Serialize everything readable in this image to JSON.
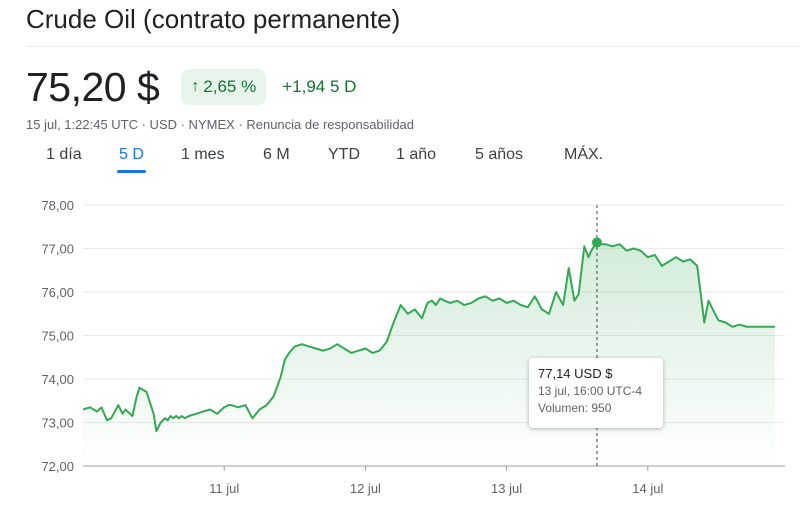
{
  "header": {
    "title": "Crude Oil (contrato permanente)",
    "price": "75,20 $",
    "change_percent": "2,65 %",
    "change_abs": "+1,94 5 D",
    "meta": "15 jul, 1:22:45 UTC · USD · NYMEX · Renuncia de responsabilidad"
  },
  "colors": {
    "up_green": "#137333",
    "line_green": "#34a853",
    "accent_blue": "#1a73e8"
  },
  "tabs": [
    {
      "label": "1 día",
      "active": false
    },
    {
      "label": "5 D",
      "active": true
    },
    {
      "label": "1 mes",
      "active": false
    },
    {
      "label": "6 M",
      "active": false
    },
    {
      "label": "YTD",
      "active": false
    },
    {
      "label": "1 año",
      "active": false
    },
    {
      "label": "5 años",
      "active": false
    },
    {
      "label": "MÁX.",
      "active": false
    }
  ],
  "tooltip": {
    "price": "77,14 USD $",
    "time": "13 jul, 16:00 UTC-4",
    "volume": "Volumen: 950"
  },
  "chart_data": {
    "type": "line",
    "ylim": [
      72,
      78
    ],
    "yticks": [
      {
        "value": 78,
        "label": "78,00"
      },
      {
        "value": 77,
        "label": "77,00"
      },
      {
        "value": 76,
        "label": "76,00"
      },
      {
        "value": 75,
        "label": "75,00"
      },
      {
        "value": 74,
        "label": "74,00"
      },
      {
        "value": 73,
        "label": "73,00"
      },
      {
        "value": 72,
        "label": "72,00"
      }
    ],
    "xlim": [
      0,
      5
    ],
    "xticks": [
      {
        "value": 1,
        "label": "11 jul"
      },
      {
        "value": 2,
        "label": "12 jul"
      },
      {
        "value": 3,
        "label": "13 jul"
      },
      {
        "value": 4,
        "label": "14 jul"
      }
    ],
    "highlight": {
      "x": 3.64,
      "y": 77.14
    },
    "series": [
      {
        "x": [
          0.0,
          0.05,
          0.1,
          0.13,
          0.17,
          0.2,
          0.25,
          0.28,
          0.3,
          0.35,
          0.38,
          0.4,
          0.45,
          0.5,
          0.52,
          0.55,
          0.58,
          0.6,
          0.62,
          0.64,
          0.66,
          0.68,
          0.7,
          0.72,
          0.75,
          0.8,
          0.85,
          0.9,
          0.95,
          1.0,
          1.03,
          1.05,
          1.1,
          1.15,
          1.2,
          1.25,
          1.3,
          1.35,
          1.4,
          1.43,
          1.46,
          1.5,
          1.55,
          1.6,
          1.65,
          1.7,
          1.75,
          1.8,
          1.85,
          1.9,
          1.95,
          2.0,
          2.05,
          2.1,
          2.15,
          2.2,
          2.25,
          2.3,
          2.35,
          2.4,
          2.44,
          2.47,
          2.5,
          2.53,
          2.56,
          2.6,
          2.65,
          2.7,
          2.75,
          2.8,
          2.85,
          2.9,
          2.95,
          3.0,
          3.05,
          3.1,
          3.15,
          3.2,
          3.25,
          3.3,
          3.35,
          3.4,
          3.44,
          3.48,
          3.51,
          3.55,
          3.58,
          3.6,
          3.62,
          3.64,
          3.67,
          3.7,
          3.75,
          3.8,
          3.85,
          3.9,
          3.95,
          4.0,
          4.05,
          4.1,
          4.15,
          4.2,
          4.25,
          4.3,
          4.35,
          4.4,
          4.43,
          4.46,
          4.5,
          4.55,
          4.6,
          4.65,
          4.7,
          4.8,
          4.9
        ],
        "values": [
          73.3,
          73.35,
          73.25,
          73.35,
          73.05,
          73.1,
          73.4,
          73.2,
          73.3,
          73.15,
          73.6,
          73.8,
          73.7,
          73.2,
          72.8,
          73.0,
          73.1,
          73.05,
          73.15,
          73.1,
          73.15,
          73.1,
          73.15,
          73.1,
          73.15,
          73.2,
          73.25,
          73.3,
          73.2,
          73.35,
          73.4,
          73.4,
          73.35,
          73.4,
          73.1,
          73.3,
          73.4,
          73.6,
          74.05,
          74.45,
          74.6,
          74.75,
          74.8,
          74.75,
          74.7,
          74.65,
          74.7,
          74.8,
          74.7,
          74.6,
          74.65,
          74.7,
          74.6,
          74.65,
          74.85,
          75.3,
          75.7,
          75.5,
          75.6,
          75.4,
          75.75,
          75.8,
          75.7,
          75.85,
          75.8,
          75.75,
          75.8,
          75.7,
          75.75,
          75.85,
          75.9,
          75.8,
          75.85,
          75.75,
          75.8,
          75.7,
          75.65,
          75.9,
          75.6,
          75.5,
          76.0,
          75.7,
          76.55,
          75.8,
          75.95,
          77.05,
          76.8,
          76.95,
          77.05,
          77.14,
          77.1,
          77.1,
          77.05,
          77.1,
          76.95,
          77.0,
          76.95,
          76.8,
          76.85,
          76.6,
          76.7,
          76.8,
          76.7,
          76.75,
          76.6,
          75.3,
          75.8,
          75.6,
          75.35,
          75.3,
          75.2,
          75.25,
          75.2,
          75.2,
          75.2
        ]
      }
    ]
  }
}
